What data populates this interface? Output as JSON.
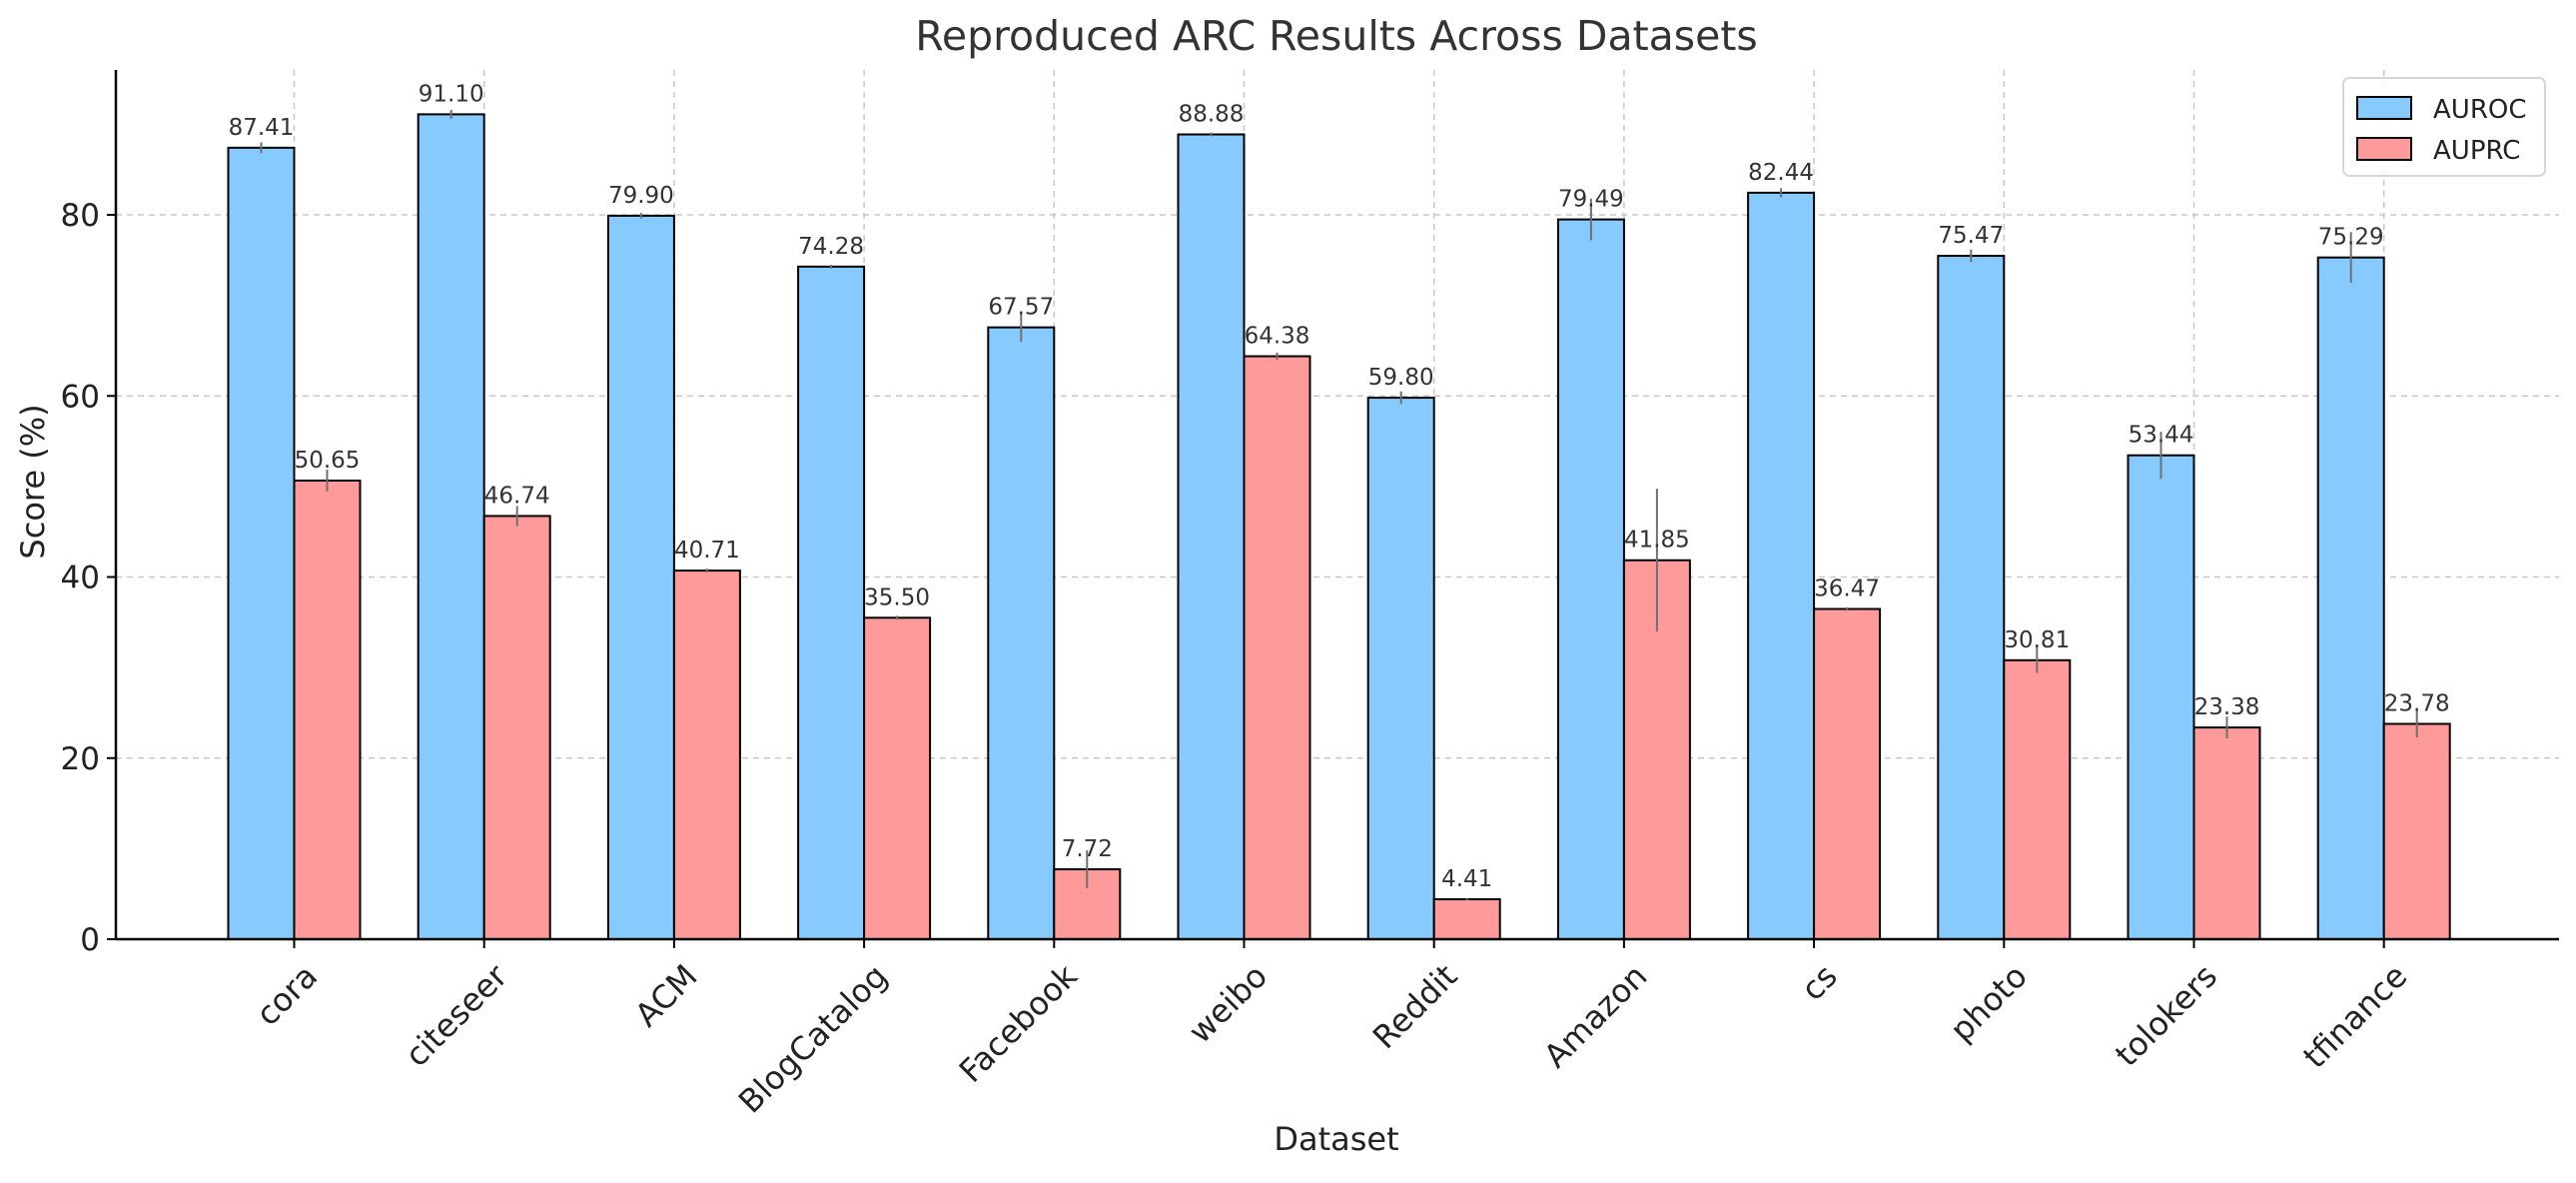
{
  "chart_data": {
    "type": "bar",
    "title": "Reproduced ARC Results Across Datasets",
    "xlabel": "Dataset",
    "ylabel": "Score (%)",
    "ylim": [
      0,
      96
    ],
    "yticks": [
      0,
      20,
      40,
      60,
      80
    ],
    "grid": true,
    "legend_position": "top-right",
    "categories": [
      "cora",
      "citeseer",
      "ACM",
      "BlogCatalog",
      "Facebook",
      "weibo",
      "Reddit",
      "Amazon",
      "cs",
      "photo",
      "tolokers",
      "tfinance"
    ],
    "series": [
      {
        "name": "AUROC",
        "color": "#87CAFD",
        "values": [
          87.41,
          91.1,
          79.9,
          74.28,
          67.57,
          88.88,
          59.8,
          79.49,
          82.44,
          75.47,
          53.44,
          75.29
        ],
        "labels": [
          "87.41",
          "91.10",
          "79.90",
          "74.28",
          "67.57",
          "88.88",
          "59.80",
          "79.49",
          "82.44",
          "75.47",
          "53.44",
          "75.29"
        ],
        "errors": [
          0.6,
          0.5,
          0.3,
          0.2,
          1.6,
          0.2,
          0.7,
          2.3,
          0.5,
          0.7,
          2.6,
          2.8
        ]
      },
      {
        "name": "AUPRC",
        "color": "#FF9A9A",
        "values": [
          50.65,
          46.74,
          40.71,
          35.5,
          7.72,
          64.38,
          4.41,
          41.85,
          36.47,
          30.81,
          23.38,
          23.78
        ],
        "labels": [
          "50.65",
          "46.74",
          "40.71",
          "35.50",
          "7.72",
          "64.38",
          "4.41",
          "41.85",
          "36.47",
          "30.81",
          "23.38",
          "23.78"
        ],
        "errors": [
          1.2,
          1.1,
          0.2,
          0.2,
          2.1,
          0.4,
          0.1,
          7.9,
          0.2,
          1.4,
          1.2,
          1.5
        ]
      }
    ]
  }
}
